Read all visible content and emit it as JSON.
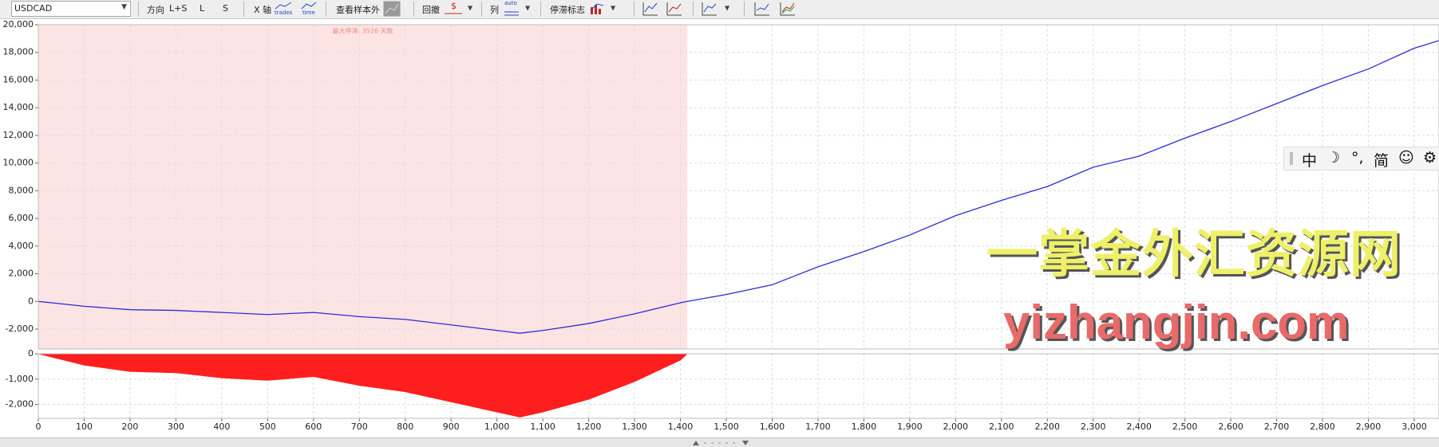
{
  "toolbar": {
    "symbol": "USDCAD",
    "direction_label": "方向",
    "direction_options": [
      "L+S",
      "L",
      "S"
    ],
    "x_axis_label": "X 轴",
    "x_axis_options": [
      "trades",
      "time"
    ],
    "out_of_sample": "查看样本外",
    "drawdown_label": "回撤",
    "column_label": "列",
    "column_option": "auto",
    "stagnation_label": "停滞标志"
  },
  "ime_bar": [
    "中",
    "☽",
    "°,",
    "简",
    "☺",
    "⚙"
  ],
  "watermark": {
    "title": "一掌金外汇资源网",
    "url": "yizhangjin.com"
  },
  "chart_data": [
    {
      "type": "line",
      "annotation": "最大停滞: 3526 天数",
      "highlight": [
        0,
        1415
      ],
      "x": [
        0,
        100,
        200,
        300,
        400,
        500,
        600,
        700,
        800,
        900,
        1000,
        1050,
        1100,
        1200,
        1300,
        1400,
        1415,
        1500,
        1600,
        1700,
        1800,
        1900,
        2000,
        2100,
        2200,
        2300,
        2400,
        2500,
        2600,
        2700,
        2800,
        2900,
        3000,
        3054
      ],
      "series": [
        {
          "color": "#2b2bd6",
          "values": [
            0,
            -350,
            -600,
            -650,
            -800,
            -950,
            -800,
            -1100,
            -1300,
            -1700,
            -2100,
            -2300,
            -2100,
            -1600,
            -900,
            -100,
            0,
            500,
            1200,
            2500,
            3600,
            4800,
            6200,
            7300,
            8300,
            9700,
            10500,
            11800,
            13000,
            14300,
            15600,
            16800,
            18300,
            18850
          ]
        }
      ],
      "xlim": [
        0,
        3054
      ],
      "ylim": [
        -3440,
        20000
      ],
      "yticks": [
        {
          "value": -2000,
          "label": "-2,000"
        },
        0,
        {
          "value": 2000,
          "label": "2,000"
        },
        {
          "value": 4000,
          "label": "4,000"
        },
        {
          "value": 6000,
          "label": "6,000"
        },
        {
          "value": 8000,
          "label": "8,000"
        },
        {
          "value": 10000,
          "label": "10,000"
        },
        {
          "value": 12000,
          "label": "12,000"
        },
        {
          "value": 14000,
          "label": "14,000"
        },
        {
          "value": 16000,
          "label": "16,000"
        },
        {
          "value": 18000,
          "label": "18,000"
        },
        {
          "value": 20000,
          "label": "20,000"
        }
      ],
      "grid": true
    },
    {
      "type": "area",
      "x": [
        0,
        100,
        200,
        300,
        400,
        500,
        600,
        700,
        800,
        900,
        1000,
        1050,
        1100,
        1200,
        1300,
        1400,
        1415,
        1500,
        3054
      ],
      "series": [
        {
          "color": "#ff1e1e",
          "values": [
            0,
            -450,
            -700,
            -750,
            -950,
            -1050,
            -900,
            -1250,
            -1500,
            -1900,
            -2300,
            -2500,
            -2300,
            -1800,
            -1100,
            -250,
            0,
            0,
            0
          ]
        }
      ],
      "xlim": [
        0,
        3054
      ],
      "ylim": [
        -2550,
        0
      ],
      "yticks": [
        {
          "value": -2000,
          "label": "-2,000"
        },
        {
          "value": -1000,
          "label": "-1,000"
        },
        0
      ],
      "xticks": [
        0,
        100,
        200,
        300,
        400,
        500,
        600,
        700,
        800,
        900,
        {
          "value": 1000,
          "label": "1,000"
        },
        {
          "value": 1100,
          "label": "1,100"
        },
        {
          "value": 1200,
          "label": "1,200"
        },
        {
          "value": 1300,
          "label": "1,300"
        },
        {
          "value": 1400,
          "label": "1,400"
        },
        {
          "value": 1500,
          "label": "1,500"
        },
        {
          "value": 1600,
          "label": "1,600"
        },
        {
          "value": 1700,
          "label": "1,700"
        },
        {
          "value": 1800,
          "label": "1,800"
        },
        {
          "value": 1900,
          "label": "1,900"
        },
        {
          "value": 2000,
          "label": "2,000"
        },
        {
          "value": 2100,
          "label": "2,100"
        },
        {
          "value": 2200,
          "label": "2,200"
        },
        {
          "value": 2300,
          "label": "2,300"
        },
        {
          "value": 2400,
          "label": "2,400"
        },
        {
          "value": 2500,
          "label": "2,500"
        },
        {
          "value": 2600,
          "label": "2,600"
        },
        {
          "value": 2700,
          "label": "2,700"
        },
        {
          "value": 2800,
          "label": "2,800"
        },
        {
          "value": 2900,
          "label": "2,900"
        },
        {
          "value": 3000,
          "label": "3,000"
        }
      ],
      "grid": true
    }
  ]
}
